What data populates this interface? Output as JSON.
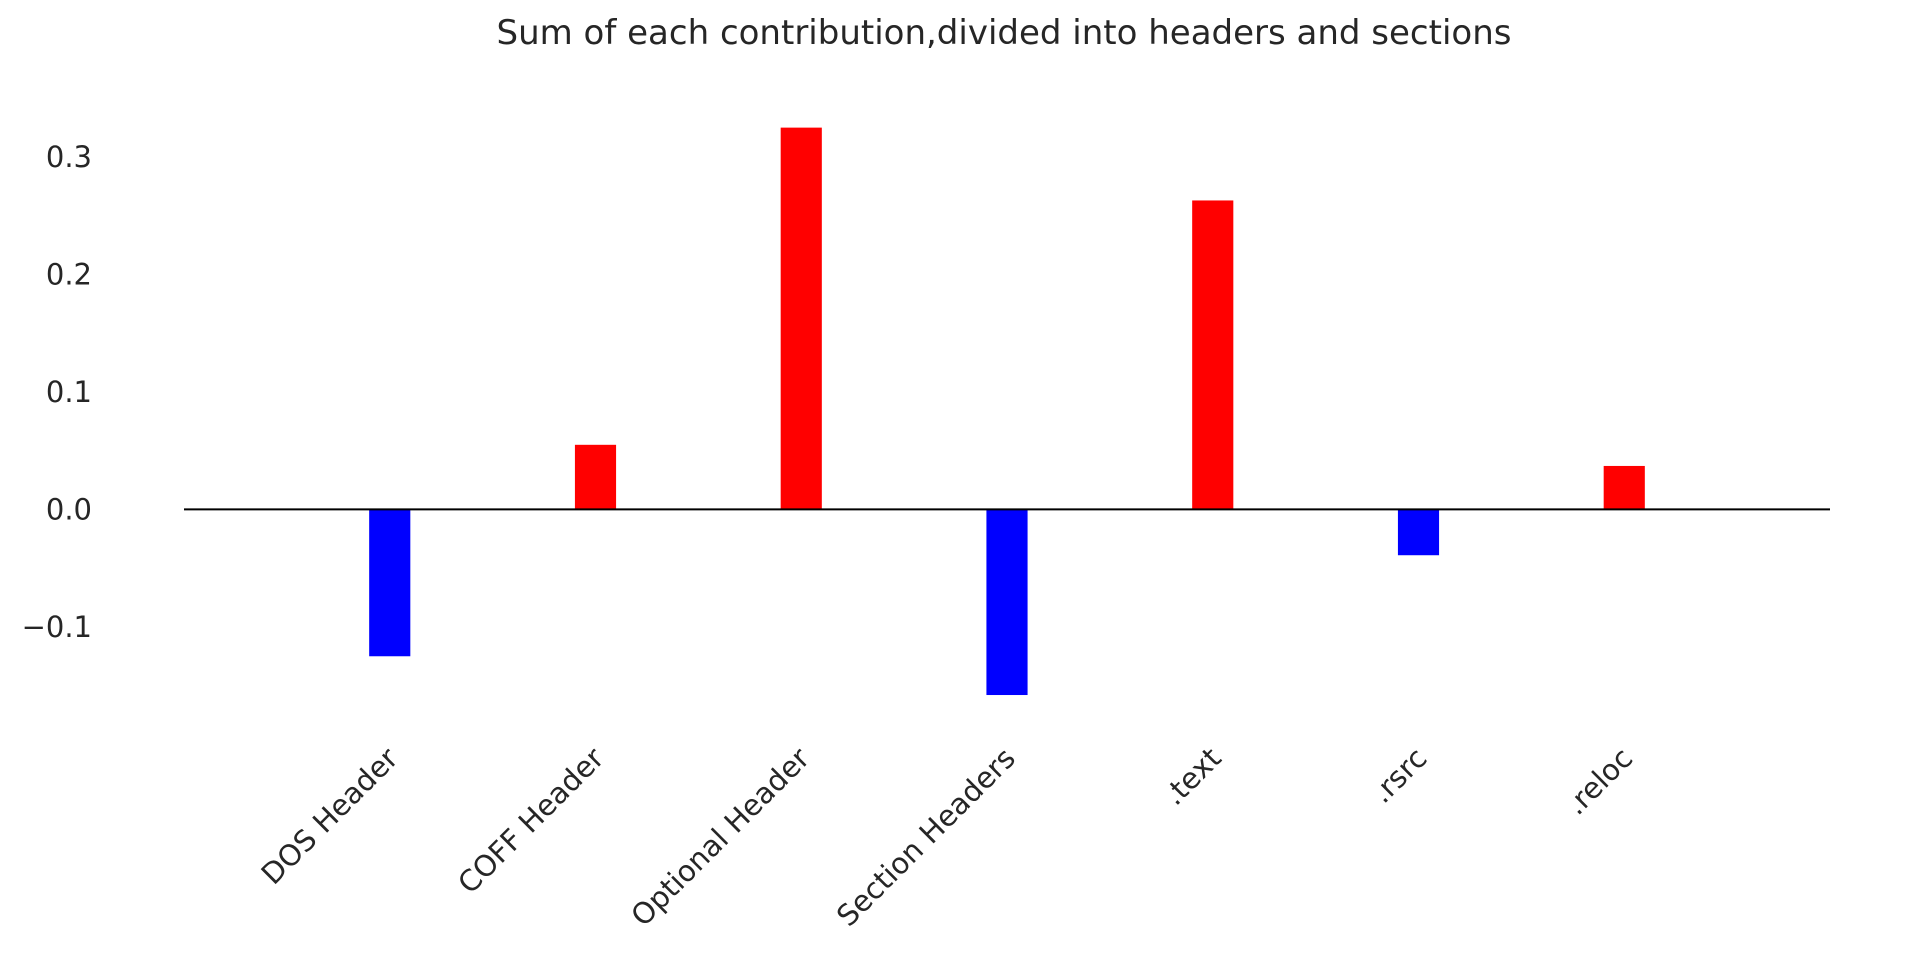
{
  "chart_data": {
    "type": "bar",
    "title": "Sum of each contribution,divided into headers and sections",
    "xlabel": "",
    "ylabel": "",
    "categories": [
      "DOS Header",
      "COFF Header",
      "Optional Header",
      "Section Headers",
      ".text",
      ".rsrc",
      ".reloc"
    ],
    "values": [
      -0.125,
      0.055,
      0.325,
      -0.158,
      0.263,
      -0.039,
      0.037
    ],
    "ylim": [
      -0.175,
      0.34
    ],
    "xlim": [
      -1,
      7
    ],
    "yticks": [
      {
        "value": -0.1,
        "label": "−0.1"
      },
      {
        "value": 0.0,
        "label": "0.0"
      },
      {
        "value": 0.1,
        "label": "0.1"
      },
      {
        "value": 0.2,
        "label": "0.2"
      },
      {
        "value": 0.3,
        "label": "0.3"
      }
    ],
    "colors": {
      "positive": "#ff0000",
      "negative": "#0000ff",
      "baseline": "#000000"
    },
    "grid": false,
    "legend": "none"
  }
}
